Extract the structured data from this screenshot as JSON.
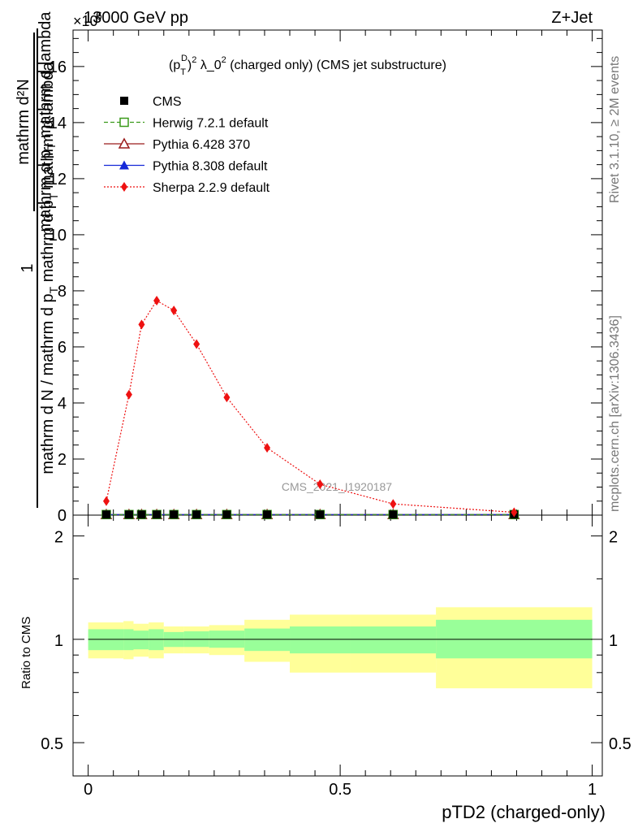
{
  "header": {
    "left": "13000 GeV pp",
    "right": "Z+Jet",
    "exponent": "×10",
    "exponent_power": "6"
  },
  "plot_title": "(p",
  "plot_title_sub": "T",
  "plot_title_sup": "D",
  "plot_title_rest": ")",
  "plot_title_sup2": "2",
  "plot_title_tail": " λ_0",
  "plot_title_sup3": "2",
  "plot_title_end": " (charged only) (CMS jet substructure)",
  "ylabel_top": "mathrm d²N",
  "ylabel_top_b": "mathrm d p",
  "ylabel_top_c": "T",
  "ylabel_top_d": " mathrm d lambda",
  "ylabel_one": "1",
  "ylabel_bottom": "mathrm d N / mathrm d p",
  "ylabel_bottom_b": "T",
  "ylabel_bottom_c": " mathrm d p",
  "ylabel_bottom_d": "T",
  "ylabel_bottom_e": " mathrm d lambda",
  "ratio_ylabel": "Ratio to CMS",
  "xlabel": "pTD2 (charged-only)",
  "watermark": "CMS_2021_I1920187",
  "side_rivet": "Rivet 3.1.10, ≥ 2M events",
  "side_mcplots": "mcplots.cern.ch [arXiv:1306.3436]",
  "legend": [
    {
      "label": "CMS",
      "color": "#000000",
      "marker": "square-filled",
      "line": "none"
    },
    {
      "label": "Herwig 7.2.1 default",
      "color": "#3a9a1a",
      "marker": "square-open",
      "line": "dashed"
    },
    {
      "label": "Pythia 6.428 370",
      "color": "#9b1c1c",
      "marker": "triangle-open",
      "line": "solid"
    },
    {
      "label": "Pythia 8.308 default",
      "color": "#1428d8",
      "marker": "triangle-filled",
      "line": "solid"
    },
    {
      "label": "Sherpa 2.2.9 default",
      "color": "#ee1111",
      "marker": "diamond-filled",
      "line": "dotted"
    }
  ],
  "chart_data": [
    {
      "type": "line",
      "title": "(p_T^D)^2 λ_0^2 (charged only) (CMS jet substructure)",
      "xlabel": "pTD2 (charged-only)",
      "ylabel": "1 / (mathrm d N / mathrm d p_T mathrm d p_T mathrm d lambda) · mathrm d²N / mathrm d p_T mathrm d lambda",
      "xlim": [
        -0.03,
        1.02
      ],
      "ylim": [
        0,
        17.3
      ],
      "y_scale_factor": "×10^6",
      "xticks": [
        0,
        0.5,
        1
      ],
      "xtick_labels": [
        "0",
        "0.5",
        "1"
      ],
      "yticks": [
        0,
        2,
        4,
        6,
        8,
        10,
        12,
        14,
        16
      ],
      "ytick_labels": [
        "0",
        "2",
        "4",
        "6",
        "8",
        "10",
        "12",
        "14",
        "16"
      ],
      "x": [
        0.036,
        0.081,
        0.106,
        0.136,
        0.17,
        0.215,
        0.275,
        0.355,
        0.46,
        0.605,
        0.845
      ],
      "series": [
        {
          "name": "CMS",
          "values": [
            0.02,
            0.02,
            0.02,
            0.02,
            0.02,
            0.02,
            0.02,
            0.02,
            0.02,
            0.02,
            0.02
          ]
        },
        {
          "name": "Herwig 7.2.1 default",
          "values": [
            0.02,
            0.02,
            0.02,
            0.02,
            0.02,
            0.02,
            0.02,
            0.02,
            0.02,
            0.02,
            0.02
          ]
        },
        {
          "name": "Pythia 6.428 370",
          "values": [
            0.02,
            0.02,
            0.02,
            0.02,
            0.02,
            0.02,
            0.02,
            0.02,
            0.02,
            0.02,
            0.02
          ]
        },
        {
          "name": "Pythia 8.308 default",
          "values": [
            0.02,
            0.02,
            0.02,
            0.02,
            0.02,
            0.02,
            0.02,
            0.02,
            0.02,
            0.02,
            0.02
          ]
        },
        {
          "name": "Sherpa 2.2.9 default",
          "values": [
            0.5,
            4.3,
            6.8,
            7.65,
            7.3,
            6.1,
            4.2,
            2.4,
            1.1,
            0.4,
            0.1
          ]
        }
      ],
      "legend": "top-left",
      "grid": false
    },
    {
      "type": "area",
      "ylabel": "Ratio to CMS",
      "xlim": [
        -0.03,
        1.02
      ],
      "ylim": [
        0.4,
        2.3
      ],
      "y_scale": "log",
      "yticks": [
        0.5,
        1,
        2
      ],
      "ytick_labels": [
        "0.5",
        "1",
        "2"
      ],
      "bins": [
        {
          "x_low": 0.0,
          "x_high": 0.07,
          "stat_low": 0.93,
          "stat_high": 1.07,
          "tot_low": 0.88,
          "tot_high": 1.12
        },
        {
          "x_low": 0.07,
          "x_high": 0.09,
          "stat_low": 0.93,
          "stat_high": 1.07,
          "tot_low": 0.875,
          "tot_high": 1.13
        },
        {
          "x_low": 0.09,
          "x_high": 0.12,
          "stat_low": 0.935,
          "stat_high": 1.06,
          "tot_low": 0.89,
          "tot_high": 1.11
        },
        {
          "x_low": 0.12,
          "x_high": 0.15,
          "stat_low": 0.93,
          "stat_high": 1.07,
          "tot_low": 0.88,
          "tot_high": 1.12
        },
        {
          "x_low": 0.15,
          "x_high": 0.19,
          "stat_low": 0.95,
          "stat_high": 1.05,
          "tot_low": 0.91,
          "tot_high": 1.09
        },
        {
          "x_low": 0.19,
          "x_high": 0.24,
          "stat_low": 0.95,
          "stat_high": 1.055,
          "tot_low": 0.91,
          "tot_high": 1.09
        },
        {
          "x_low": 0.24,
          "x_high": 0.31,
          "stat_low": 0.945,
          "stat_high": 1.06,
          "tot_low": 0.9,
          "tot_high": 1.1
        },
        {
          "x_low": 0.31,
          "x_high": 0.4,
          "stat_low": 0.925,
          "stat_high": 1.075,
          "tot_low": 0.86,
          "tot_high": 1.14
        },
        {
          "x_low": 0.4,
          "x_high": 0.52,
          "stat_low": 0.91,
          "stat_high": 1.09,
          "tot_low": 0.8,
          "tot_high": 1.18
        },
        {
          "x_low": 0.52,
          "x_high": 0.69,
          "stat_low": 0.91,
          "stat_high": 1.09,
          "tot_low": 0.8,
          "tot_high": 1.18
        },
        {
          "x_low": 0.69,
          "x_high": 1.0,
          "stat_low": 0.88,
          "stat_high": 1.14,
          "tot_low": 0.72,
          "tot_high": 1.24
        }
      ],
      "colors": {
        "stat": "#99ff99",
        "total": "#ffff99"
      }
    }
  ]
}
